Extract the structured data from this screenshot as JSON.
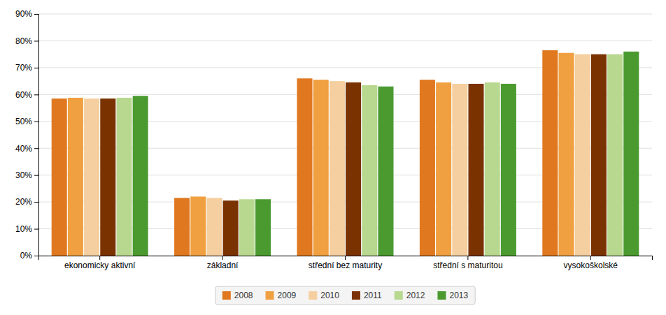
{
  "chart_data": {
    "type": "bar",
    "categories": [
      "ekonomicky aktivní",
      "základní",
      "střední bez maturity",
      "střední s maturitou",
      "vysokoškolské"
    ],
    "series": [
      {
        "name": "2008",
        "color": "#E07820",
        "values": [
          58.5,
          21.5,
          66.0,
          65.5,
          76.5
        ]
      },
      {
        "name": "2009",
        "color": "#F0A040",
        "values": [
          58.8,
          22.0,
          65.5,
          64.5,
          75.5
        ]
      },
      {
        "name": "2010",
        "color": "#F5CFA0",
        "values": [
          58.5,
          21.5,
          65.0,
          64.0,
          75.0
        ]
      },
      {
        "name": "2011",
        "color": "#7A3200",
        "values": [
          58.5,
          20.5,
          64.5,
          64.0,
          75.0
        ]
      },
      {
        "name": "2012",
        "color": "#B8D890",
        "values": [
          58.8,
          21.0,
          63.5,
          64.5,
          75.0
        ]
      },
      {
        "name": "2013",
        "color": "#4A9A30",
        "values": [
          59.5,
          21.0,
          63.0,
          64.0,
          76.0
        ]
      }
    ],
    "ylim": [
      0,
      90
    ],
    "yticks": [
      {
        "value": 0,
        "label": "0%"
      },
      {
        "value": 10,
        "label": "10%"
      },
      {
        "value": 20,
        "label": "20%"
      },
      {
        "value": 30,
        "label": "30%"
      },
      {
        "value": 40,
        "label": "40%"
      },
      {
        "value": 50,
        "label": "50%"
      },
      {
        "value": 60,
        "label": "60%"
      },
      {
        "value": 70,
        "label": "70%"
      },
      {
        "value": 80,
        "label": "80%"
      },
      {
        "value": 90,
        "label": "90%"
      }
    ],
    "grid": true,
    "legend": "bottom"
  }
}
